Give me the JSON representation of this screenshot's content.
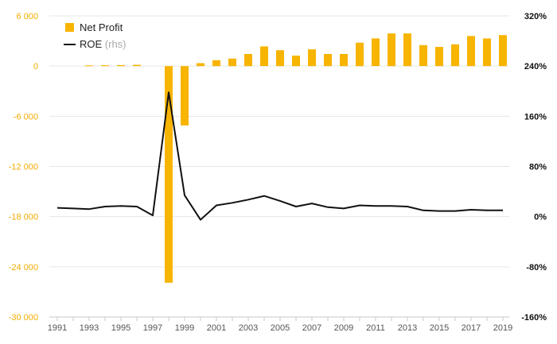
{
  "colors": {
    "bar": "#f7b400",
    "line": "#111111",
    "grid": "#e6e6e6",
    "left_tick": "#f2ac00"
  },
  "chart_data": {
    "type": "bar+line",
    "title": "",
    "legend_position": "top-left",
    "legend": {
      "bar": "Net Profit",
      "line": "ROE",
      "line_note": "(rhs)"
    },
    "x": [
      1991,
      1992,
      1993,
      1994,
      1995,
      1996,
      1997,
      1998,
      1999,
      2000,
      2001,
      2002,
      2003,
      2004,
      2005,
      2006,
      2007,
      2008,
      2009,
      2010,
      2011,
      2012,
      2013,
      2014,
      2015,
      2016,
      2017,
      2018,
      2019
    ],
    "x_tick_labels": [
      "1991",
      "1993",
      "1995",
      "1997",
      "1999",
      "2001",
      "2003",
      "2005",
      "2007",
      "2009",
      "2011",
      "2013",
      "2015",
      "2017",
      "2019"
    ],
    "series": [
      {
        "name": "Net Profit",
        "type": "bar",
        "axis": "left",
        "values": [
          0,
          0,
          80,
          100,
          120,
          150,
          0,
          -25900,
          -7100,
          350,
          700,
          900,
          1450,
          2350,
          1900,
          1250,
          2000,
          1450,
          1450,
          2800,
          3300,
          3900,
          3900,
          2500,
          2300,
          2600,
          3600,
          3300,
          3700
        ]
      },
      {
        "name": "ROE",
        "type": "line",
        "axis": "right",
        "values": [
          14,
          13,
          12,
          16,
          17,
          16,
          2,
          198,
          34,
          -5,
          18,
          22,
          27,
          33,
          25,
          16,
          21,
          15,
          13,
          18,
          17,
          17,
          16,
          10,
          9,
          9,
          11,
          10,
          10
        ]
      }
    ],
    "y_left": {
      "range": [
        -30000,
        6000
      ],
      "ticks": [
        6000,
        0,
        -6000,
        -12000,
        -18000,
        -24000,
        -30000
      ],
      "tick_labels": [
        "6 000",
        "0",
        "-6 000",
        "-12 000",
        "-18 000",
        "-24 000",
        "-30 000"
      ]
    },
    "y_right": {
      "range": [
        -160,
        320
      ],
      "ticks": [
        320,
        240,
        160,
        80,
        0,
        -80,
        -160
      ],
      "tick_labels": [
        "320%",
        "240%",
        "160%",
        "80%",
        "0%",
        "-80%",
        "-160%"
      ]
    },
    "grid": true
  }
}
